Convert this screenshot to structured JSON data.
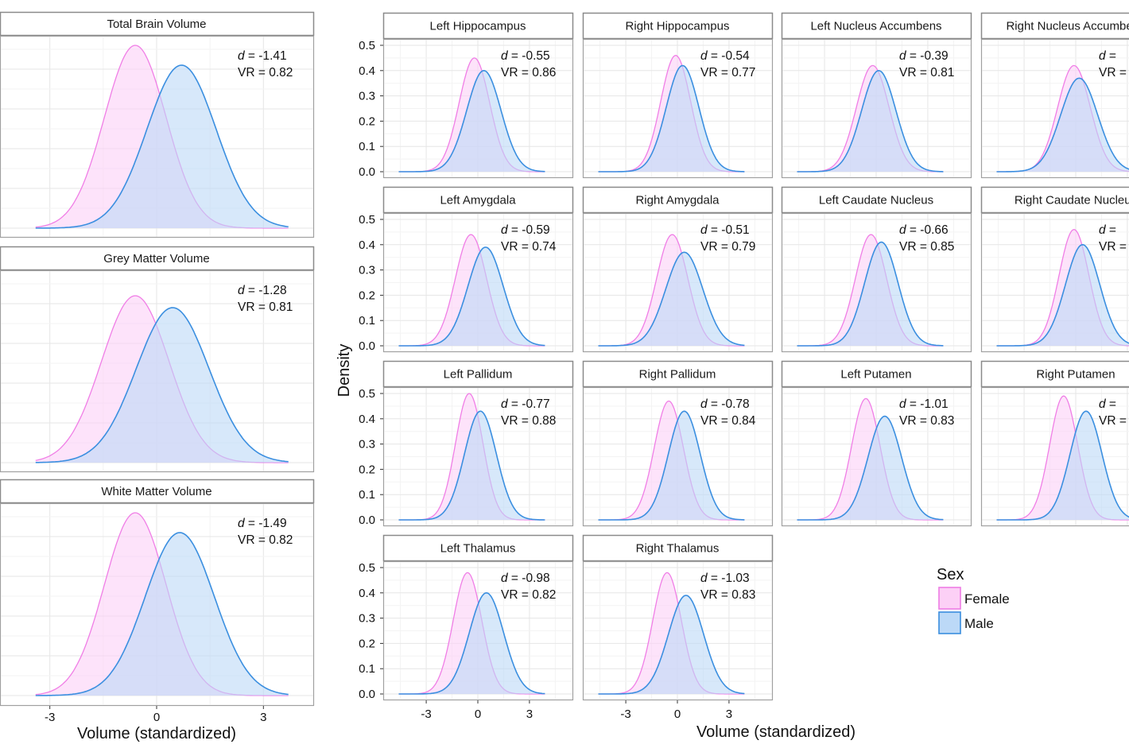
{
  "chart_data": {
    "type": "area",
    "subtype": "density",
    "xlabel": "Volume (standardized)",
    "ylabel": "Density",
    "grid": true,
    "legend": {
      "title": "Sex",
      "placement": "bottom-right",
      "entries": [
        "Female",
        "Male"
      ]
    },
    "colors": {
      "Female": "#f07ee6",
      "Male": "#3b8fe0",
      "Female_fill": "#fcd0f6",
      "Male_fill": "#bcd9f7"
    },
    "large_panels": {
      "xticks": [
        "-3",
        "0",
        "3"
      ],
      "xlim": [
        -4.4,
        4.4
      ],
      "panels": [
        {
          "title": "Total Brain Volume",
          "d": "-1.41",
          "vr": "0.82",
          "female_peak_x": -0.6,
          "female_peak_density": 0.46,
          "male_peak_x": 0.7,
          "male_peak_density": 0.41
        },
        {
          "title": "Grey Matter Volume",
          "d": "-1.28",
          "vr": "0.81",
          "female_peak_x": -0.6,
          "female_peak_density": 0.42,
          "male_peak_x": 0.45,
          "male_peak_density": 0.39
        },
        {
          "title": "White Matter Volume",
          "d": "-1.49",
          "vr": "0.82",
          "female_peak_x": -0.6,
          "female_peak_density": 0.46,
          "male_peak_x": 0.65,
          "male_peak_density": 0.41
        }
      ]
    },
    "small_panels": {
      "xticks": [
        "-3",
        "0",
        "3"
      ],
      "yticks": [
        "0.0",
        "0.1",
        "0.2",
        "0.3",
        "0.4",
        "0.5"
      ],
      "xlim": [
        -5.5,
        5.5
      ],
      "ylim": [
        0,
        0.5
      ],
      "panels": [
        {
          "title": "Left Hippocampus",
          "d": "-0.55",
          "vr": "0.86",
          "female_peak_x": -0.2,
          "female_peak_density": 0.45,
          "male_peak_x": 0.35,
          "male_peak_density": 0.4
        },
        {
          "title": "Right Hippocampus",
          "d": "-0.54",
          "vr": "0.77",
          "female_peak_x": -0.1,
          "female_peak_density": 0.46,
          "male_peak_x": 0.3,
          "male_peak_density": 0.42
        },
        {
          "title": "Left Nucleus Accumbens",
          "d": "-0.39",
          "vr": "0.81",
          "female_peak_x": -0.2,
          "female_peak_density": 0.42,
          "male_peak_x": 0.15,
          "male_peak_density": 0.4
        },
        {
          "title": "Right Nucleus Accumbens",
          "d": "",
          "vr": "",
          "female_peak_x": -0.1,
          "female_peak_density": 0.42,
          "male_peak_x": 0.2,
          "male_peak_density": 0.37
        },
        {
          "title": "Left Amygdala",
          "d": "-0.59",
          "vr": "0.74",
          "female_peak_x": -0.4,
          "female_peak_density": 0.44,
          "male_peak_x": 0.45,
          "male_peak_density": 0.39
        },
        {
          "title": "Right Amygdala",
          "d": "-0.51",
          "vr": "0.79",
          "female_peak_x": -0.3,
          "female_peak_density": 0.44,
          "male_peak_x": 0.4,
          "male_peak_density": 0.37
        },
        {
          "title": "Left Caudate Nucleus",
          "d": "-0.66",
          "vr": "0.85",
          "female_peak_x": -0.3,
          "female_peak_density": 0.44,
          "male_peak_x": 0.3,
          "male_peak_density": 0.41
        },
        {
          "title": "Right Caudate Nucleus",
          "d": "",
          "vr": "",
          "female_peak_x": -0.1,
          "female_peak_density": 0.46,
          "male_peak_x": 0.4,
          "male_peak_density": 0.4
        },
        {
          "title": "Left Pallidum",
          "d": "-0.77",
          "vr": "0.88",
          "female_peak_x": -0.5,
          "female_peak_density": 0.5,
          "male_peak_x": 0.15,
          "male_peak_density": 0.43
        },
        {
          "title": "Right Pallidum",
          "d": "-0.78",
          "vr": "0.84",
          "female_peak_x": -0.5,
          "female_peak_density": 0.47,
          "male_peak_x": 0.4,
          "male_peak_density": 0.43
        },
        {
          "title": "Left Putamen",
          "d": "-1.01",
          "vr": "0.83",
          "female_peak_x": -0.6,
          "female_peak_density": 0.48,
          "male_peak_x": 0.5,
          "male_peak_density": 0.41
        },
        {
          "title": "Right Putamen",
          "d": "",
          "vr": "",
          "female_peak_x": -0.7,
          "female_peak_density": 0.49,
          "male_peak_x": 0.6,
          "male_peak_density": 0.43
        },
        {
          "title": "Left Thalamus",
          "d": "-0.98",
          "vr": "0.82",
          "female_peak_x": -0.6,
          "female_peak_density": 0.48,
          "male_peak_x": 0.5,
          "male_peak_density": 0.4
        },
        {
          "title": "Right Thalamus",
          "d": "-1.03",
          "vr": "0.83",
          "female_peak_x": -0.6,
          "female_peak_density": 0.48,
          "male_peak_x": 0.5,
          "male_peak_density": 0.39
        }
      ]
    }
  }
}
